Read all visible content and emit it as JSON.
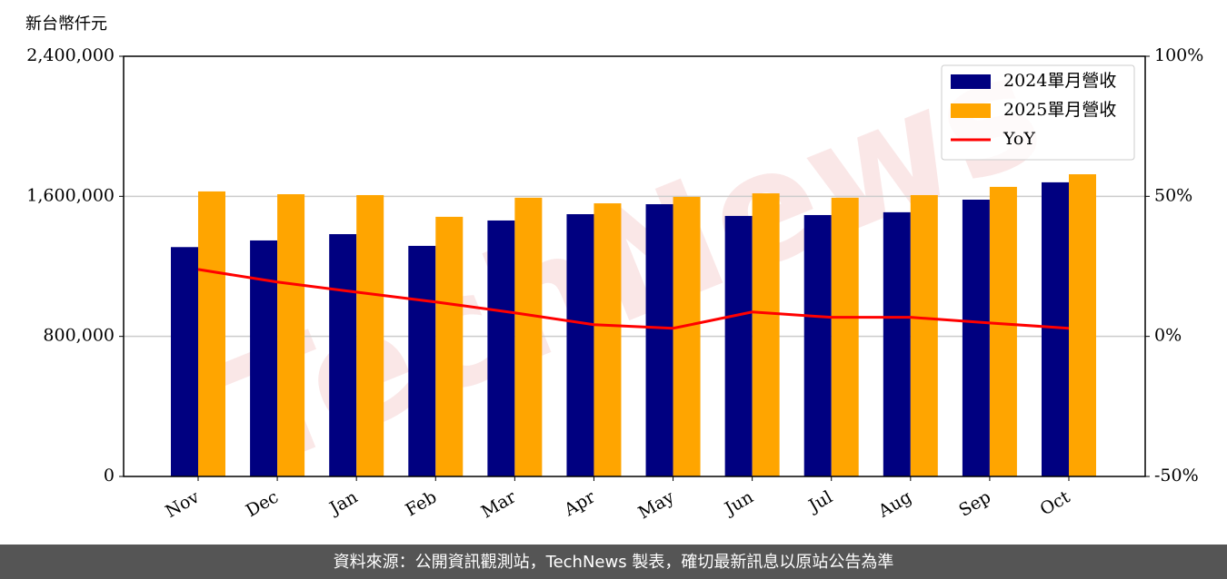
{
  "chart_data": {
    "type": "bar",
    "y_label": "新台幣仟元",
    "watermark": "TechNews",
    "footer": "資料來源：公開資訊觀測站，TechNews 製表，確切最新訊息以原站公告為準",
    "categories": [
      "Nov",
      "Dec",
      "Jan",
      "Feb",
      "Mar",
      "Apr",
      "May",
      "Jun",
      "Jul",
      "Aug",
      "Sep",
      "Oct"
    ],
    "series": [
      {
        "name": "2024單月營收",
        "color": "#000080",
        "values": [
          1310000,
          1348000,
          1384000,
          1317000,
          1462000,
          1498000,
          1555000,
          1488000,
          1493000,
          1509000,
          1581000,
          1680000
        ]
      },
      {
        "name": "2025單月營收",
        "color": "#ffa500",
        "values": [
          1628000,
          1612000,
          1607000,
          1483000,
          1592000,
          1560000,
          1597000,
          1617000,
          1592000,
          1607000,
          1654000,
          1726000
        ]
      },
      {
        "name": "YoY",
        "type": "line",
        "axis": "y2",
        "color": "#ff0000",
        "values": [
          23.9,
          19.4,
          15.8,
          12.3,
          8.4,
          4.2,
          2.9,
          8.7,
          6.8,
          6.8,
          4.8,
          2.9
        ]
      }
    ],
    "ylim": [
      0,
      2400000
    ],
    "yticks": [
      0,
      {
        "value": 800000,
        "label": "800,000"
      },
      {
        "value": 1600000,
        "label": "1,600,000"
      },
      {
        "value": 2400000,
        "label": "2,400,000"
      }
    ],
    "y2lim": [
      -50,
      100
    ],
    "y2ticks": [
      {
        "value": -50,
        "label": "-50%"
      },
      {
        "value": 0,
        "label": "0%"
      },
      {
        "value": 50,
        "label": "50%"
      },
      {
        "value": 100,
        "label": "100%"
      }
    ],
    "grid": true,
    "legend": "upper right"
  }
}
